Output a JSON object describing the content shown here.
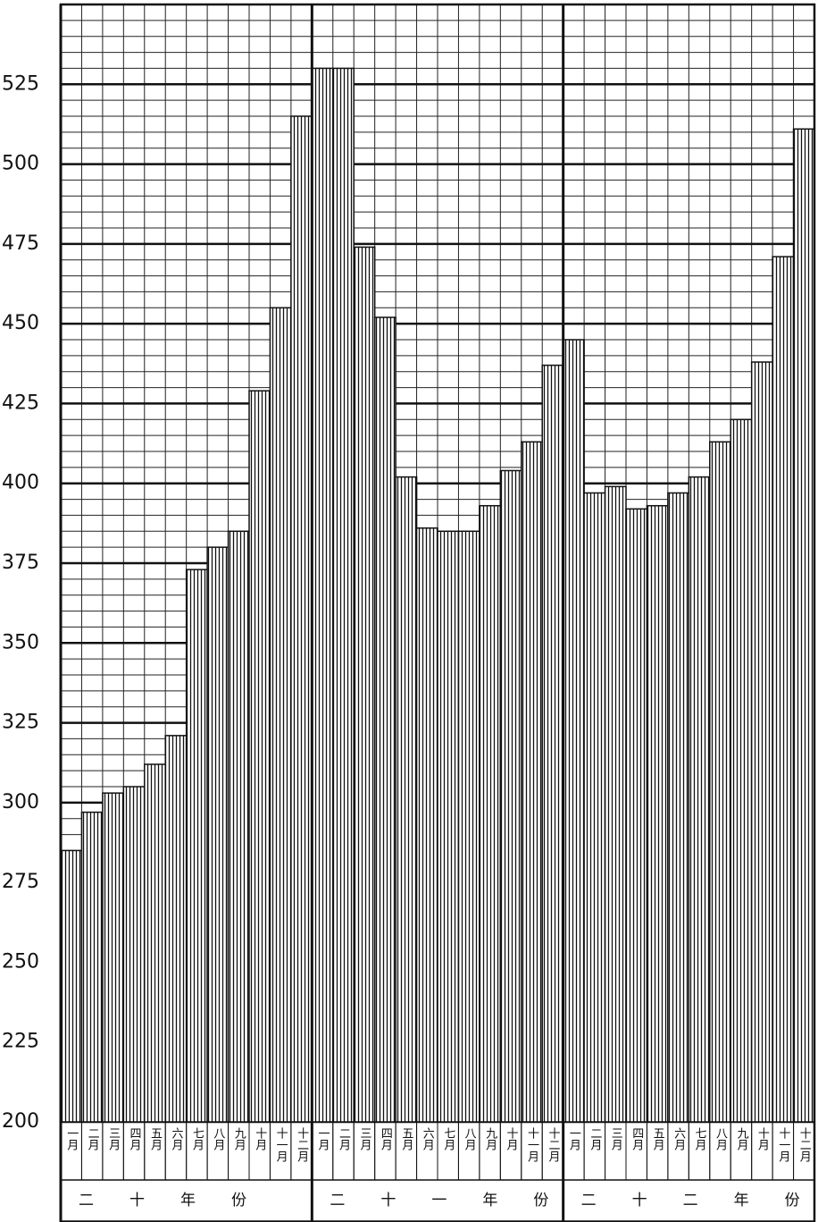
{
  "chart_data": {
    "type": "bar",
    "categories": [
      "一月",
      "二月",
      "三月",
      "四月",
      "五月",
      "六月",
      "七月",
      "八月",
      "九月",
      "十月",
      "十一月",
      "十二月",
      "一月",
      "二月",
      "三月",
      "四月",
      "五月",
      "六月",
      "七月",
      "八月",
      "九月",
      "十月",
      "十一月",
      "十二月",
      "一月",
      "二月",
      "三月",
      "四月",
      "五月",
      "六月",
      "七月",
      "八月",
      "九月",
      "十月",
      "十一月",
      "十二月"
    ],
    "groups": [
      "二十年份",
      "二十一年份",
      "二十二年份"
    ],
    "values": [
      285,
      297,
      303,
      305,
      312,
      321,
      373,
      380,
      385,
      429,
      455,
      515,
      530,
      530,
      474,
      452,
      402,
      386,
      385,
      385,
      393,
      404,
      413,
      437,
      445,
      397,
      399,
      392,
      393,
      397,
      402,
      413,
      420,
      438,
      471,
      511
    ],
    "color": "#111111",
    "ylim": [
      200,
      550
    ],
    "yticks": [
      200,
      225,
      250,
      275,
      300,
      325,
      350,
      375,
      400,
      425,
      450,
      475,
      500,
      525
    ],
    "grid": true
  }
}
